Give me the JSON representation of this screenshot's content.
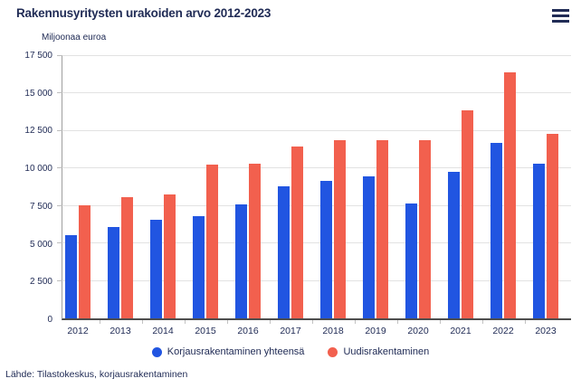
{
  "chart_data": {
    "type": "bar",
    "title": "Rakennusyritysten urakoiden arvo 2012-2023",
    "y_axis_title": "Miljoonaa euroa",
    "categories": [
      "2012",
      "2013",
      "2014",
      "2015",
      "2016",
      "2017",
      "2018",
      "2019",
      "2020",
      "2021",
      "2022",
      "2023"
    ],
    "series": [
      {
        "name": "Korjausrakentaminen yhteensä",
        "color": "#2155e1",
        "values": [
          5550,
          6100,
          6600,
          6800,
          7600,
          8800,
          9200,
          9450,
          7650,
          9800,
          11700,
          10300
        ]
      },
      {
        "name": "Uudisrakentaminen",
        "color": "#f2604e",
        "values": [
          7550,
          8100,
          8250,
          10250,
          10300,
          11450,
          11900,
          11900,
          11900,
          13900,
          16400,
          12300
        ]
      }
    ],
    "ylim": [
      0,
      17500
    ],
    "y_tick_step": 2500,
    "y_tick_labels": [
      "0",
      "2 500",
      "5 000",
      "7 500",
      "10 000",
      "12 500",
      "15 000",
      "17 500"
    ],
    "grid": true,
    "legend_position": "bottom"
  },
  "header": {
    "menu_icon": "hamburger-menu"
  },
  "footer": {
    "source_text": "Lähde: Tilastokeskus, korjausrakentaminen"
  },
  "colors": {
    "text_navy": "#212c56",
    "bar_blue": "#2155e1",
    "bar_red": "#f2604e",
    "gridline": "#e2e2e2",
    "axis_line": "#4d4d4d"
  }
}
